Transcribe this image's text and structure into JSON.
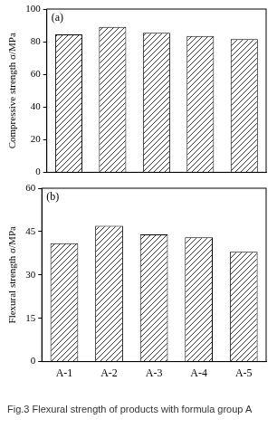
{
  "caption": "Fig.3 Flexural strength of products with formula group A",
  "chart_data": [
    {
      "type": "bar",
      "annotation": "(a)",
      "y_label": "Compressive strength σ/MPa",
      "categories": [
        "A-1",
        "A-2",
        "A-3",
        "A-4",
        "A-5"
      ],
      "values": [
        84.5,
        89,
        85.5,
        83.5,
        81.5
      ],
      "color": "#000000",
      "ylim": [
        0,
        100
      ],
      "yticks": [
        0,
        20,
        40,
        60,
        80,
        100
      ],
      "grid": false,
      "tick_labels": "y"
    },
    {
      "type": "bar",
      "annotation": "(b)",
      "y_label": "Flexural strength σ/MPa",
      "categories": [
        "A-1",
        "A-2",
        "A-3",
        "A-4",
        "A-5"
      ],
      "values": [
        41,
        47,
        44,
        43,
        38
      ],
      "color": "#000000",
      "ylim": [
        0,
        60
      ],
      "yticks": [
        0,
        15,
        30,
        45,
        60
      ],
      "grid": false
    }
  ]
}
